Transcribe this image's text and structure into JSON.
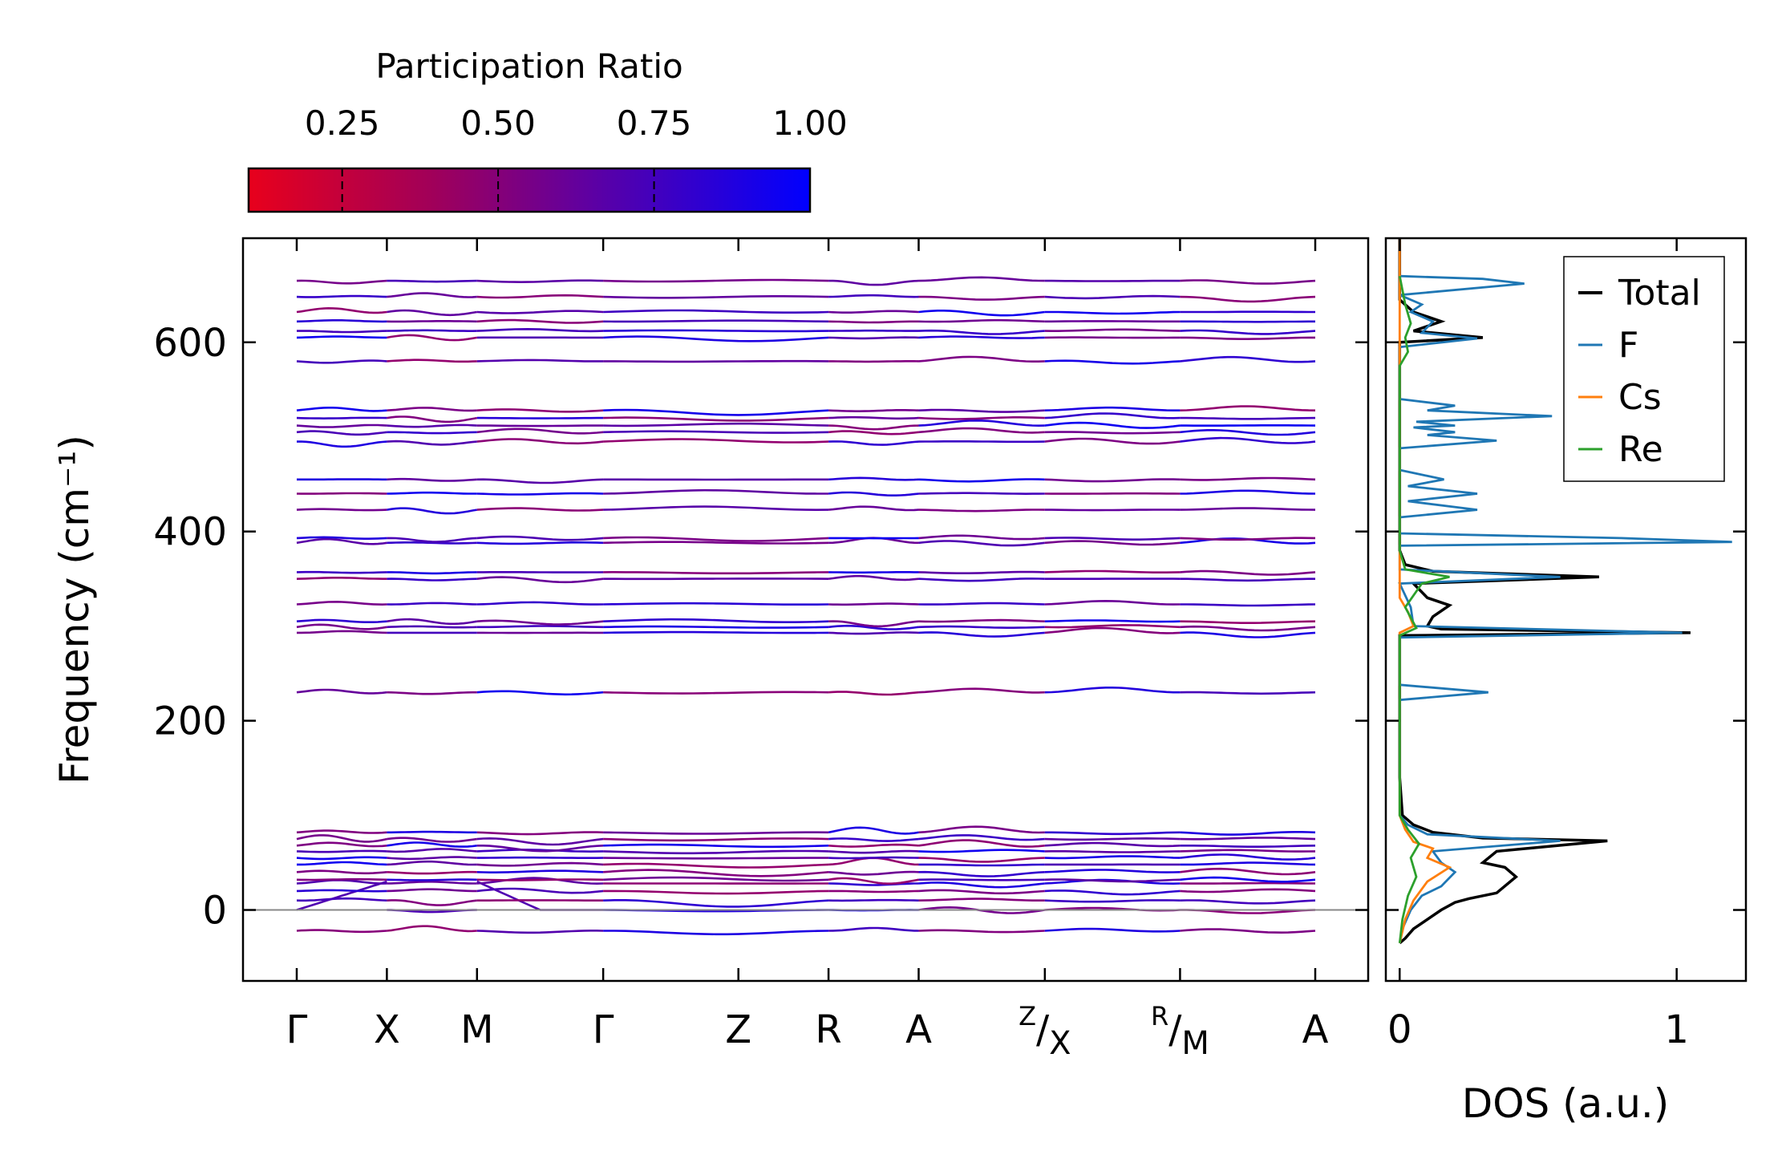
{
  "chart_data": [
    {
      "type": "line",
      "subtype": "phonon-band-structure",
      "ylabel": "Frequency (cm⁻¹)",
      "ylim": [
        -75,
        710
      ],
      "yticks": [
        0,
        200,
        400,
        600
      ],
      "ytick_labels": [
        "0",
        "200",
        "400",
        "600"
      ],
      "high_symmetry_points": [
        {
          "label": "Γ",
          "x": 0
        },
        {
          "label": "X",
          "x": 0.5
        },
        {
          "label": "M",
          "x": 1.0
        },
        {
          "label": "Γ",
          "x": 1.7
        },
        {
          "label": "Z",
          "x": 2.45
        },
        {
          "label": "R",
          "x": 2.95
        },
        {
          "label": "A",
          "x": 3.45
        },
        {
          "label": "Z/X",
          "sup": "Z",
          "main": "X",
          "x": 4.15
        },
        {
          "label": "R/M",
          "sup": "R",
          "main": "M",
          "x": 4.9
        },
        {
          "label": "A",
          "x": 5.65
        }
      ],
      "segments": [
        [
          0,
          0.5
        ],
        [
          0.5,
          1.0
        ],
        [
          1.0,
          1.7
        ],
        [
          1.7,
          2.95
        ],
        [
          2.95,
          3.45
        ],
        [
          3.45,
          4.15
        ],
        [
          4.15,
          4.9
        ],
        [
          4.9,
          5.65
        ]
      ],
      "colorbar": {
        "title": "Participation Ratio",
        "range": [
          0.1,
          1.0
        ],
        "ticks": [
          0.25,
          0.5,
          0.75,
          1.0
        ],
        "tick_labels": [
          "0.25",
          "0.50",
          "0.75",
          "1.00"
        ],
        "color_low": "#e8001c",
        "color_high": "#0000ff"
      },
      "band_levels_approx": [
        -22,
        0,
        10,
        20,
        28,
        32,
        40,
        48,
        55,
        62,
        68,
        75,
        82,
        230,
        293,
        299,
        305,
        323,
        350,
        357,
        388,
        393,
        423,
        440,
        455,
        495,
        505,
        512,
        520,
        528,
        580,
        605,
        612,
        622,
        632,
        648,
        665
      ],
      "zero_line": 0
    },
    {
      "type": "line",
      "subtype": "density-of-states",
      "xlabel": "DOS (a.u.)",
      "xlim": [
        -0.05,
        1.25
      ],
      "xticks": [
        0,
        1
      ],
      "xtick_labels": [
        "0",
        "1"
      ],
      "ylim": [
        -75,
        710
      ],
      "legend_position": "top-right",
      "series": [
        {
          "name": "Total",
          "color": "#000000",
          "points": [
            [
              0,
              -35
            ],
            [
              0.02,
              -30
            ],
            [
              0.05,
              -20
            ],
            [
              0.1,
              -10
            ],
            [
              0.15,
              0
            ],
            [
              0.2,
              8
            ],
            [
              0.25,
              12
            ],
            [
              0.35,
              18
            ],
            [
              0.42,
              35
            ],
            [
              0.38,
              45
            ],
            [
              0.3,
              50
            ],
            [
              0.35,
              62
            ],
            [
              0.75,
              73
            ],
            [
              0.3,
              76
            ],
            [
              0.12,
              82
            ],
            [
              0.05,
              90
            ],
            [
              0.01,
              100
            ],
            [
              0,
              140
            ],
            [
              0,
              200
            ],
            [
              0,
              225
            ],
            [
              0,
              235
            ],
            [
              0,
              260
            ],
            [
              0,
              290
            ],
            [
              1.05,
              293
            ],
            [
              0.15,
              297
            ],
            [
              0.1,
              300
            ],
            [
              0.12,
              310
            ],
            [
              0.18,
              322
            ],
            [
              0.1,
              330
            ],
            [
              0.05,
              345
            ],
            [
              0.72,
              352
            ],
            [
              0.12,
              358
            ],
            [
              0.02,
              365
            ],
            [
              0,
              380
            ],
            [
              0,
              400
            ],
            [
              0,
              600
            ],
            [
              0.3,
              605
            ],
            [
              0.05,
              612
            ],
            [
              0.15,
              622
            ],
            [
              0.05,
              632
            ],
            [
              0,
              645
            ],
            [
              0,
              710
            ]
          ]
        },
        {
          "name": "F",
          "color": "#1f77b4",
          "points": [
            [
              0,
              -35
            ],
            [
              0.01,
              -20
            ],
            [
              0.04,
              0
            ],
            [
              0.08,
              15
            ],
            [
              0.15,
              25
            ],
            [
              0.2,
              40
            ],
            [
              0.15,
              50
            ],
            [
              0.12,
              62
            ],
            [
              0.58,
              73
            ],
            [
              0.1,
              80
            ],
            [
              0.03,
              90
            ],
            [
              0,
              100
            ],
            [
              0,
              222
            ],
            [
              0.32,
              230
            ],
            [
              0,
              238
            ],
            [
              0,
              288
            ],
            [
              1.02,
              293
            ],
            [
              0.05,
              300
            ],
            [
              0.04,
              320
            ],
            [
              0,
              345
            ],
            [
              0.58,
              352
            ],
            [
              0,
              360
            ],
            [
              0,
              385
            ],
            [
              1.2,
              389
            ],
            [
              0.8,
              393
            ],
            [
              0,
              398
            ],
            [
              0,
              415
            ],
            [
              0.28,
              423
            ],
            [
              0.03,
              432
            ],
            [
              0.28,
              440
            ],
            [
              0.03,
              448
            ],
            [
              0.16,
              455
            ],
            [
              0,
              465
            ],
            [
              0,
              488
            ],
            [
              0.35,
              496
            ],
            [
              0.1,
              502
            ],
            [
              0.2,
              505
            ],
            [
              0.05,
              510
            ],
            [
              0.2,
              512
            ],
            [
              0.06,
              516
            ],
            [
              0.55,
              522
            ],
            [
              0.1,
              528
            ],
            [
              0.2,
              533
            ],
            [
              0,
              540
            ],
            [
              0,
              595
            ],
            [
              0.28,
              604
            ],
            [
              0.08,
              610
            ],
            [
              0.12,
              622
            ],
            [
              0.04,
              632
            ],
            [
              0.08,
              640
            ],
            [
              0,
              650
            ],
            [
              0.45,
              662
            ],
            [
              0.3,
              667
            ],
            [
              0,
              670
            ]
          ]
        },
        {
          "name": "Cs",
          "color": "#ff7f0e",
          "points": [
            [
              0,
              -35
            ],
            [
              0.02,
              -10
            ],
            [
              0.05,
              10
            ],
            [
              0.1,
              30
            ],
            [
              0.18,
              45
            ],
            [
              0.1,
              55
            ],
            [
              0.12,
              65
            ],
            [
              0.05,
              72
            ],
            [
              0.02,
              85
            ],
            [
              0,
              100
            ],
            [
              0,
              293
            ],
            [
              0.05,
              300
            ],
            [
              0.03,
              315
            ],
            [
              0,
              330
            ],
            [
              0,
              710
            ]
          ]
        },
        {
          "name": "Re",
          "color": "#2ca02c",
          "points": [
            [
              0,
              -35
            ],
            [
              0.01,
              -10
            ],
            [
              0.03,
              15
            ],
            [
              0.06,
              35
            ],
            [
              0.04,
              55
            ],
            [
              0.07,
              70
            ],
            [
              0.03,
              85
            ],
            [
              0,
              100
            ],
            [
              0,
              290
            ],
            [
              0.06,
              298
            ],
            [
              0.02,
              320
            ],
            [
              0.08,
              345
            ],
            [
              0.18,
              352
            ],
            [
              0.02,
              360
            ],
            [
              0,
              380
            ],
            [
              0,
              575
            ],
            [
              0.03,
              590
            ],
            [
              0.02,
              605
            ],
            [
              0.04,
              620
            ],
            [
              0.02,
              640
            ],
            [
              0,
              670
            ]
          ]
        }
      ]
    }
  ]
}
